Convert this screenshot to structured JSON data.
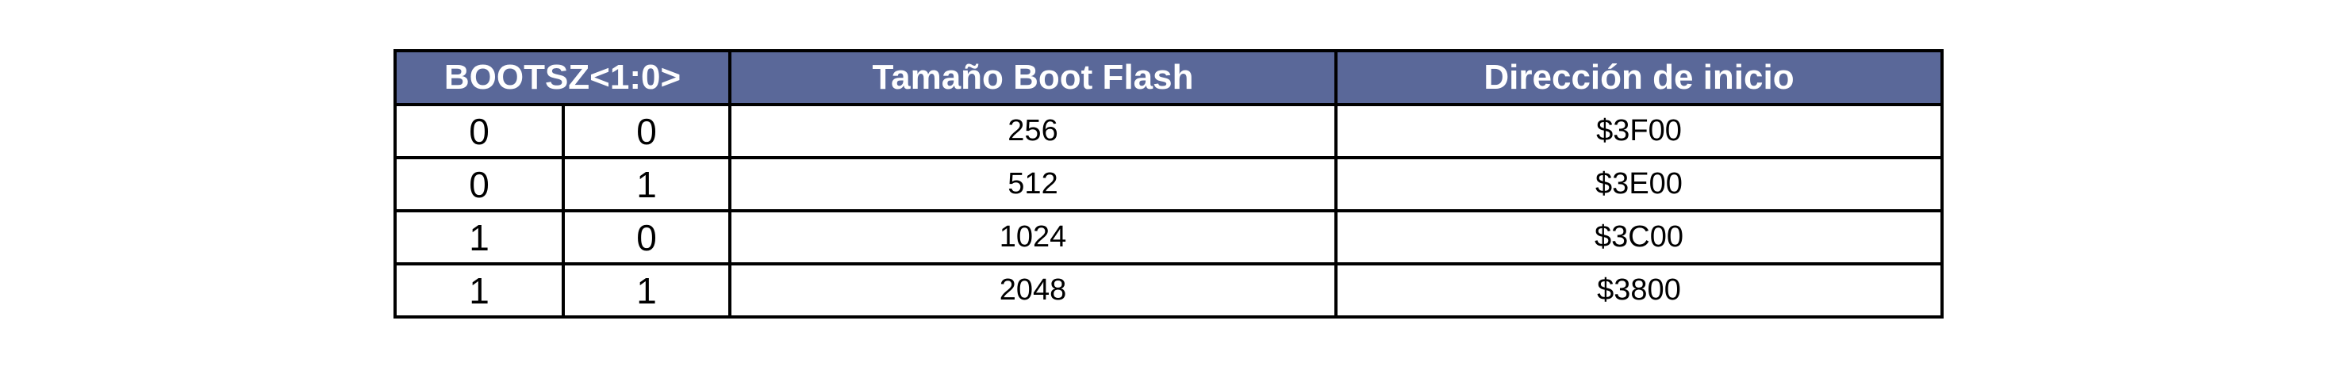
{
  "table": {
    "headers": {
      "bootsz": "BOOTSZ<1:0>",
      "size": "Tamaño Boot Flash",
      "address": "Dirección de inicio"
    },
    "rows": [
      {
        "bit1": "0",
        "bit0": "0",
        "size": "256",
        "address": "$3F00"
      },
      {
        "bit1": "0",
        "bit0": "1",
        "size": "512",
        "address": "$3E00"
      },
      {
        "bit1": "1",
        "bit0": "0",
        "size": "1024",
        "address": "$3C00"
      },
      {
        "bit1": "1",
        "bit0": "1",
        "size": "2048",
        "address": "$3800"
      }
    ]
  },
  "colors": {
    "header_background": "#5a6899",
    "header_text": "#ffffff",
    "border": "#000000"
  }
}
